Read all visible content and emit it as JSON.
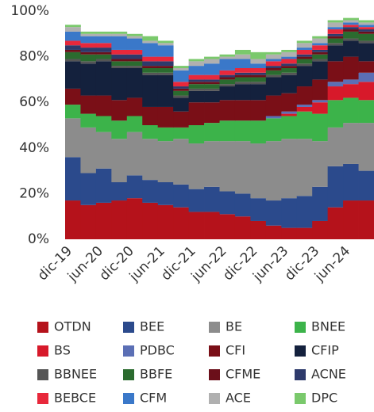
{
  "chart_data": {
    "type": "stacked_area",
    "categories": [
      "dic-19",
      null,
      "jun-20",
      null,
      "dic-20",
      null,
      "jun-21",
      null,
      "dic-21",
      null,
      "jun-22",
      null,
      "dic-22",
      null,
      "jun-23",
      null,
      "dic-23",
      null,
      "jun-24",
      null
    ],
    "ylim": [
      0,
      100
    ],
    "yticks": [
      {
        "value": 0,
        "label": "0%"
      },
      {
        "value": 20,
        "label": "20%"
      },
      {
        "value": 40,
        "label": "40%"
      },
      {
        "value": 60,
        "label": "60%"
      },
      {
        "value": 80,
        "label": "80%"
      },
      {
        "value": 100,
        "label": "100%"
      }
    ],
    "series": [
      {
        "name": "OTDN",
        "color": "#b5121b",
        "values": [
          17,
          15,
          16,
          17,
          18,
          16,
          15,
          14,
          12,
          12,
          11,
          10,
          8,
          6,
          5,
          5,
          8,
          14,
          17,
          17
        ]
      },
      {
        "name": "BEE",
        "color": "#2b4a8c",
        "values": [
          19,
          14,
          15,
          8,
          10,
          10,
          10,
          10,
          10,
          11,
          10,
          10,
          10,
          11,
          13,
          14,
          15,
          18,
          16,
          13
        ]
      },
      {
        "name": "BE",
        "color": "#8c8c8c",
        "values": [
          17,
          20,
          16,
          19,
          19,
          18,
          18,
          20,
          20,
          20,
          22,
          23,
          24,
          26,
          26,
          25,
          20,
          17,
          18,
          21
        ]
      },
      {
        "name": "BNEE",
        "color": "#3cb34a",
        "values": [
          6,
          6,
          7,
          8,
          7,
          6,
          6,
          5,
          8,
          8,
          9,
          9,
          10,
          10,
          10,
          12,
          12,
          12,
          11,
          10
        ]
      },
      {
        "name": "BS",
        "color": "#d7192a",
        "values": [
          0,
          0,
          0,
          0,
          0,
          0,
          0,
          0,
          0,
          0,
          0,
          0,
          0,
          0,
          1,
          2,
          5,
          6,
          6,
          8
        ]
      },
      {
        "name": "PDBC",
        "color": "#5b6fb5",
        "values": [
          0,
          0,
          0,
          0,
          0,
          0,
          0,
          0,
          0,
          0,
          0,
          0,
          0,
          1,
          1,
          1,
          1,
          2,
          2,
          4
        ]
      },
      {
        "name": "CFI",
        "color": "#7a0f17",
        "values": [
          7,
          8,
          9,
          9,
          8,
          8,
          9,
          7,
          10,
          9,
          9,
          9,
          9,
          9,
          8,
          8,
          9,
          9,
          10,
          5
        ]
      },
      {
        "name": "CFIP",
        "color": "#14213d",
        "values": [
          12,
          14,
          15,
          14,
          13,
          14,
          14,
          6,
          5,
          5,
          6,
          7,
          7,
          8,
          8,
          9,
          8,
          7,
          7,
          8
        ]
      },
      {
        "name": "BBNEE",
        "color": "#555555",
        "values": [
          1,
          1,
          1,
          1,
          1,
          1,
          1,
          1,
          1,
          1,
          1,
          1,
          1,
          1,
          1,
          1,
          1,
          1,
          1,
          1
        ]
      },
      {
        "name": "BBFE",
        "color": "#2b6b2f",
        "values": [
          3,
          3,
          2,
          2,
          2,
          2,
          2,
          2,
          2,
          2,
          2,
          2,
          2,
          2,
          2,
          2,
          2,
          2,
          3,
          3
        ]
      },
      {
        "name": "CFME",
        "color": "#6b0f1a",
        "values": [
          1,
          1,
          1,
          1,
          1,
          1,
          1,
          1,
          1,
          1,
          1,
          1,
          1,
          1,
          1,
          1,
          1,
          1,
          1,
          1
        ]
      },
      {
        "name": "ACNE",
        "color": "#2e3a6b",
        "values": [
          2,
          2,
          2,
          2,
          2,
          2,
          2,
          1,
          1,
          1,
          1,
          1,
          1,
          1,
          1,
          1,
          1,
          1,
          1,
          1
        ]
      },
      {
        "name": "BEBCE",
        "color": "#e8283b",
        "values": [
          2,
          2,
          2,
          2,
          2,
          2,
          2,
          2,
          2,
          2,
          2,
          2,
          2,
          2,
          2,
          2,
          2,
          2,
          1,
          1
        ]
      },
      {
        "name": "CFM",
        "color": "#3a78c9",
        "values": [
          4,
          3,
          3,
          6,
          5,
          6,
          5,
          5,
          4,
          5,
          5,
          4,
          2,
          1,
          1,
          1,
          1,
          1,
          1,
          1
        ]
      },
      {
        "name": "ACE",
        "color": "#b0b0b0",
        "values": [
          2,
          1,
          1,
          1,
          1,
          1,
          1,
          1,
          2,
          2,
          1,
          2,
          2,
          2,
          2,
          2,
          2,
          2,
          1,
          1
        ]
      },
      {
        "name": "DPC",
        "color": "#7ac96c",
        "values": [
          1,
          1,
          1,
          1,
          1,
          2,
          1,
          1,
          1,
          1,
          1,
          2,
          3,
          1,
          1,
          1,
          1,
          1,
          1,
          1
        ]
      }
    ]
  }
}
